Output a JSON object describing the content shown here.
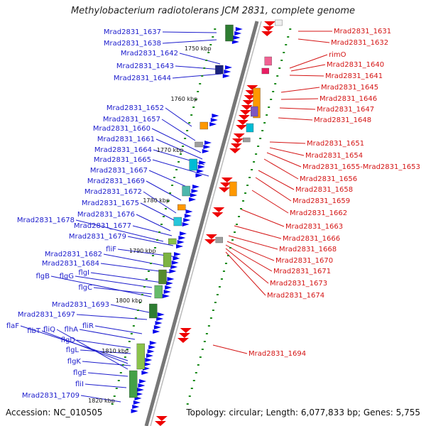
{
  "title": "Methylobacterium radiotolerans JCM 2831, complete genome",
  "footer": {
    "accession": "Accession: NC_010505",
    "topology": "Topology: circular; Length: 6,077,833 bp; Genes: 5,755"
  },
  "colors": {
    "left_label": "#1c1ccc",
    "right_label": "#d41414",
    "backbone": "#777777",
    "ticks": "#1a8a1a",
    "forward_gene": "#0000ee",
    "reverse_gene": "#ee0000"
  },
  "kbp_marks": [
    "1750 kbp",
    "1760 kbp",
    "1770 kbp",
    "1780 kbp",
    "1790 kbp",
    "1800 kbp",
    "1810 kbp",
    "1820 kbp"
  ],
  "left_labels": [
    "Mrad2831_1637",
    "Mrad2831_1638",
    "Mrad2831_1642",
    "Mrad2831_1643",
    "Mrad2831_1644",
    "Mrad2831_1652",
    "Mrad2831_1657",
    "Mrad2831_1660",
    "Mrad2831_1661",
    "Mrad2831_1664",
    "Mrad2831_1665",
    "Mrad2831_1667",
    "Mrad2831_1669",
    "Mrad2831_1672",
    "Mrad2831_1675",
    "Mrad2831_1676",
    "Mrad2831_1678",
    "Mrad2831_1677",
    "Mrad2831_1679",
    "fliF",
    "Mrad2831_1682",
    "Mrad2831_1684",
    "flgI",
    "flgB",
    "flgG",
    "flgC",
    "Mrad2831_1693",
    "Mrad2831_1697",
    "fliR",
    "flaF",
    "flbT",
    "fliQ",
    "flhA",
    "flgD",
    "flgL",
    "flgK",
    "flgE",
    "fliI",
    "Mrad2831_1709"
  ],
  "right_labels": [
    "Mrad2831_1631",
    "Mrad2831_1632",
    "rimO",
    "Mrad2831_1640",
    "Mrad2831_1641",
    "Mrad2831_1645",
    "Mrad2831_1646",
    "Mrad2831_1647",
    "Mrad2831_1648",
    "Mrad2831_1651",
    "Mrad2831_1654",
    "Mrad2831_1655-Mrad2831_1653",
    "Mrad2831_1656",
    "Mrad2831_1658",
    "Mrad2831_1659",
    "Mrad2831_1662",
    "Mrad2831_1663",
    "Mrad2831_1666",
    "Mrad2831_1668",
    "Mrad2831_1670",
    "Mrad2831_1671",
    "Mrad2831_1673",
    "Mrad2831_1674",
    "Mrad2831_1694"
  ]
}
